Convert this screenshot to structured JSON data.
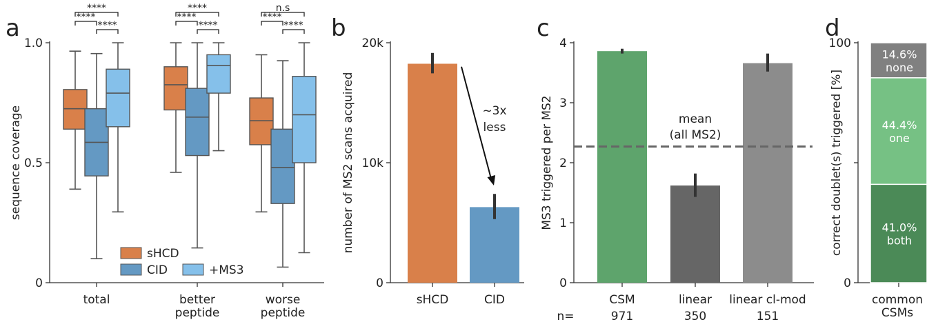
{
  "colors": {
    "shcd": "#d9804a",
    "cid": "#6499c3",
    "ms3": "#85c0ea",
    "csm": "#5ea46c",
    "linear": "#666666",
    "clmod": "#8c8c8c",
    "seg_top": "#808080",
    "seg_mid": "#76c184",
    "seg_bot": "#4b8a57",
    "whisker": "#444444",
    "dashed": "#666666"
  },
  "chart_data": [
    {
      "panel": "a",
      "type": "box",
      "ylabel": "sequence coverage",
      "ylim": [
        0,
        1.0
      ],
      "yticks": [
        {
          "value": 0,
          "label": "0"
        },
        {
          "value": 0.5,
          "label": "0.5"
        },
        {
          "value": 1.0,
          "label": "1.0"
        }
      ],
      "categories": [
        "total",
        "better\npeptide",
        "worse\npeptide"
      ],
      "category_lines": [
        [
          "total"
        ],
        [
          "better",
          "peptide"
        ],
        [
          "worse",
          "peptide"
        ]
      ],
      "series": [
        {
          "name": "sHCD",
          "color_key": "shcd",
          "boxes": [
            {
              "min": 0.39,
              "q1": 0.64,
              "median": 0.725,
              "q3": 0.805,
              "max": 0.965
            },
            {
              "min": 0.46,
              "q1": 0.72,
              "median": 0.825,
              "q3": 0.9,
              "max": 1.0
            },
            {
              "min": 0.295,
              "q1": 0.575,
              "median": 0.675,
              "q3": 0.77,
              "max": 0.95
            }
          ]
        },
        {
          "name": "CID",
          "color_key": "cid",
          "boxes": [
            {
              "min": 0.1,
              "q1": 0.445,
              "median": 0.585,
              "q3": 0.725,
              "max": 0.955
            },
            {
              "min": 0.145,
              "q1": 0.53,
              "median": 0.69,
              "q3": 0.81,
              "max": 1.0
            },
            {
              "min": 0.065,
              "q1": 0.33,
              "median": 0.48,
              "q3": 0.64,
              "max": 0.925
            }
          ]
        },
        {
          "name": "+MS3",
          "color_key": "ms3",
          "boxes": [
            {
              "min": 0.295,
              "q1": 0.65,
              "median": 0.79,
              "q3": 0.89,
              "max": 1.0
            },
            {
              "min": 0.55,
              "q1": 0.79,
              "median": 0.905,
              "q3": 0.95,
              "max": 1.0
            },
            {
              "min": 0.125,
              "q1": 0.5,
              "median": 0.7,
              "q3": 0.86,
              "max": 1.0
            }
          ]
        }
      ],
      "significance": [
        {
          "group": 0,
          "from": 0,
          "to": 2,
          "label": "****",
          "level": 2
        },
        {
          "group": 0,
          "from": 0,
          "to": 1,
          "label": "****",
          "level": 1
        },
        {
          "group": 0,
          "from": 1,
          "to": 2,
          "label": "****",
          "level": 0
        },
        {
          "group": 1,
          "from": 0,
          "to": 2,
          "label": "****",
          "level": 2
        },
        {
          "group": 1,
          "from": 0,
          "to": 1,
          "label": "****",
          "level": 1
        },
        {
          "group": 1,
          "from": 1,
          "to": 2,
          "label": "****",
          "level": 0
        },
        {
          "group": 2,
          "from": 0,
          "to": 2,
          "label": "n.s",
          "level": 2
        },
        {
          "group": 2,
          "from": 0,
          "to": 1,
          "label": "****",
          "level": 1
        },
        {
          "group": 2,
          "from": 1,
          "to": 2,
          "label": "****",
          "level": 0
        }
      ],
      "legend": {
        "placement": "bottom-center",
        "entries": [
          "sHCD",
          "CID",
          "+MS3"
        ]
      }
    },
    {
      "panel": "b",
      "type": "bar",
      "ylabel": "number of MS2 scans acquired",
      "ylim": [
        0,
        20000
      ],
      "yticks": [
        {
          "value": 0,
          "label": "0"
        },
        {
          "value": 10000,
          "label": "10k"
        },
        {
          "value": 20000,
          "label": "20k"
        }
      ],
      "categories": [
        "sHCD",
        "CID"
      ],
      "values": [
        18250,
        6300
      ],
      "errors": [
        [
          17450,
          19150
        ],
        [
          5300,
          7400
        ]
      ],
      "color_keys": [
        "shcd",
        "cid"
      ],
      "annotation": [
        "~3x",
        "less"
      ]
    },
    {
      "panel": "c",
      "type": "bar",
      "ylabel": "MS3 triggered per MS2",
      "ylim": [
        0,
        4
      ],
      "yticks": [
        {
          "value": 0,
          "label": "0"
        },
        {
          "value": 1,
          "label": "1"
        },
        {
          "value": 2,
          "label": "2"
        },
        {
          "value": 3,
          "label": "3"
        },
        {
          "value": 4,
          "label": "4"
        }
      ],
      "categories": [
        "CSM",
        "linear",
        "linear cl-mod"
      ],
      "n_prefix": "n=",
      "n_values": [
        "971",
        "350",
        "151"
      ],
      "values": [
        3.86,
        1.62,
        3.66
      ],
      "errors": [
        [
          3.82,
          3.9
        ],
        [
          1.43,
          1.82
        ],
        [
          3.52,
          3.82
        ]
      ],
      "color_keys": [
        "csm",
        "linear",
        "clmod"
      ],
      "mean_line": 2.27,
      "mean_label": [
        "mean",
        "(all MS2)"
      ]
    },
    {
      "panel": "d",
      "type": "stacked-bar",
      "ylabel": "correct doublet(s) triggered [%]",
      "ylim": [
        0,
        100
      ],
      "yticks": [
        {
          "value": 0,
          "label": "0"
        },
        {
          "value": 50,
          "label": ""
        },
        {
          "value": 100,
          "label": "100"
        }
      ],
      "categories": [
        "common\nCSMs"
      ],
      "category_lines": [
        "common",
        "CSMs"
      ],
      "segments": [
        {
          "name": "both",
          "value": 41.0,
          "label": "41.0%",
          "color_key": "seg_bot"
        },
        {
          "name": "one",
          "value": 44.4,
          "label": "44.4%",
          "color_key": "seg_mid"
        },
        {
          "name": "none",
          "value": 14.6,
          "label": "14.6%",
          "color_key": "seg_top"
        }
      ]
    }
  ]
}
